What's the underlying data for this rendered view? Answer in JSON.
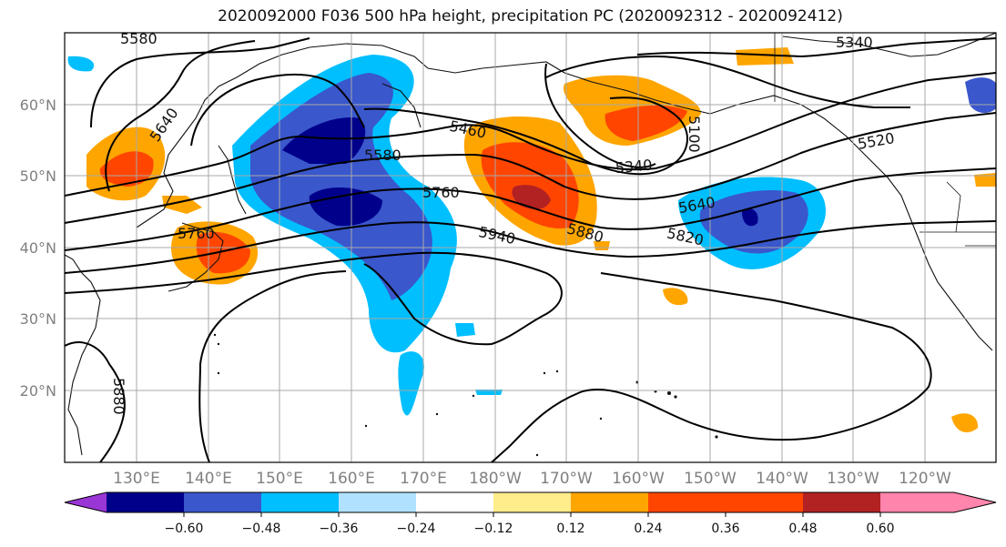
{
  "title": "2020092000 F036 500 hPa height, precipitation PC (2020092312 - 2020092412)",
  "lat_labels": [
    "60°N",
    "50°N",
    "40°N",
    "30°N",
    "20°N"
  ],
  "lon_labels": [
    "130°E",
    "140°E",
    "150°E",
    "160°E",
    "170°E",
    "180°W",
    "170°W",
    "160°W",
    "150°W",
    "140°W",
    "130°W",
    "120°W"
  ],
  "contour_labels": [
    "5580",
    "5640",
    "5340",
    "5460",
    "5580",
    "5520",
    "5760",
    "5340",
    "5640",
    "5760",
    "5940",
    "5880",
    "5820",
    "5880",
    "5100"
  ],
  "colorbar": {
    "colors": [
      "#9b36d6",
      "#00008b",
      "#3a57cc",
      "#00bfff",
      "#b0e2ff",
      "#ffffff",
      "#ffec8b",
      "#ffa500",
      "#ff4500",
      "#b22222",
      "#ff85ad"
    ],
    "tick_labels": [
      "−0.60",
      "−0.48",
      "−0.36",
      "−0.24",
      "−0.12",
      "0.12",
      "0.24",
      "0.36",
      "0.48",
      "0.60"
    ]
  }
}
